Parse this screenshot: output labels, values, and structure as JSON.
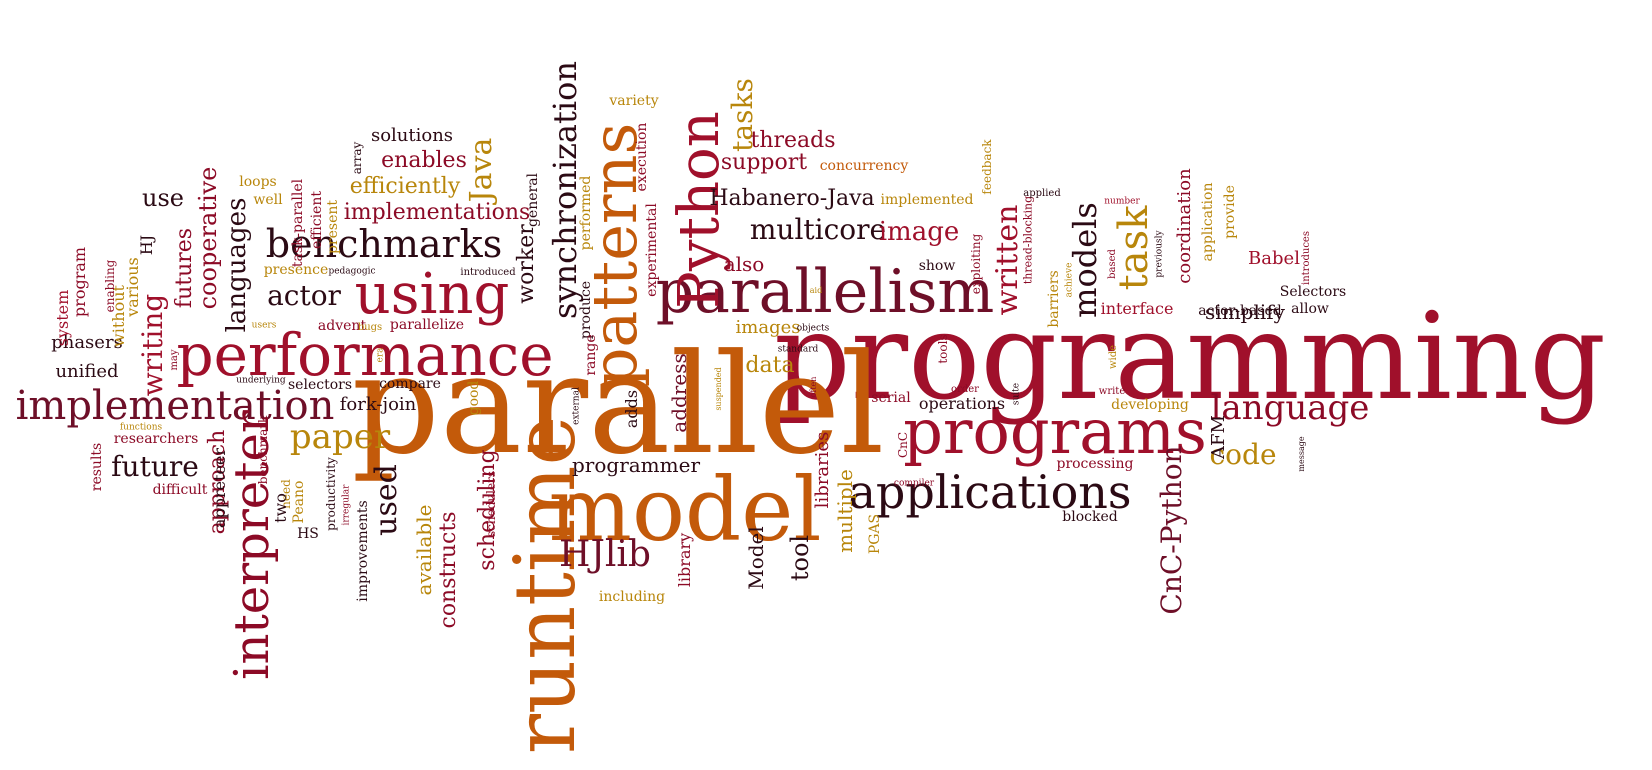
{
  "words": [
    "programming",
    "parallel",
    "model",
    "runtime",
    "parallelism",
    "performance",
    "programs",
    "applications",
    "patterns",
    "Python",
    "using",
    "implementation",
    "interpreter",
    "benchmarks",
    "synchronization",
    "language",
    "task",
    "models",
    "paper",
    "written",
    "HJlib",
    "actor",
    "code",
    "Java",
    "CnC-Python",
    "tasks",
    "multicore",
    "image",
    "languages",
    "future",
    "writing",
    "cooperative",
    "futures",
    "used",
    "efficiently",
    "enables",
    "implementations",
    "use",
    "Habanero-Java",
    "support",
    "threads",
    "approach",
    "constructs",
    "scheduling",
    "available",
    "solutions",
    "tool",
    "Model",
    "library",
    "multiple",
    "data",
    "also",
    "images",
    "address",
    "programmer",
    "simplify",
    "coordination",
    "Babel",
    "actor-based",
    "interface",
    "barriers",
    "unified",
    "phasers",
    "system",
    "without",
    "various",
    "loops",
    "well",
    "efficient",
    "task-parallel",
    "present",
    "general",
    "execution",
    "experimental",
    "performed",
    "produce",
    "variety",
    "concurrency",
    "implemented",
    "exploiting",
    "feedback",
    "thread-blocking",
    "applied",
    "achieve",
    "based",
    "previously",
    "introduces",
    "application",
    "provide",
    "Selectors",
    "allow",
    "number",
    "message",
    "AFM",
    "processing",
    "developing",
    "write",
    "suite",
    "order",
    "wide",
    "operations",
    "serial",
    "tools",
    "show",
    "aid",
    "objects",
    "often",
    "standard",
    "suspended",
    "external",
    "CnC",
    "PGAS",
    "compiler",
    "blocked",
    "libraries",
    "adds",
    "good",
    "range",
    "compare",
    "selectors",
    "fork-join",
    "parallelize",
    "advent",
    "bugs",
    "users",
    "era",
    "underlying",
    "may",
    "results",
    "functions",
    "researchers",
    "difficult",
    "need",
    "benchmark",
    "two",
    "Peano",
    "HS",
    "productivity",
    "irregular",
    "improvements",
    "including",
    "worker",
    "introduced",
    "pedagogic",
    "presence",
    "enabling",
    "program",
    "HJ",
    "array",
    "appreteer",
    "schedulers"
  ]
}
